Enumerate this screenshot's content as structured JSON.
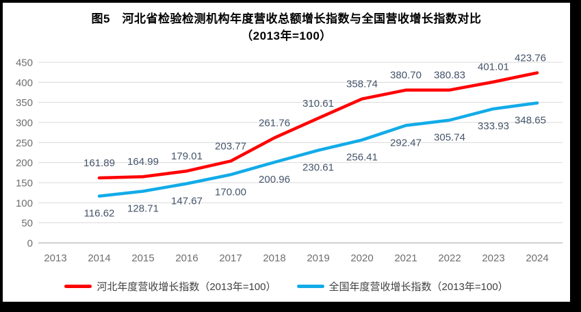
{
  "window": {
    "background": "#ffffff",
    "border_color": "#000000"
  },
  "title": {
    "line1": "图5　河北省检验检测机构年度营收总额增长指数与全国营收增长指数对比",
    "line2": "（2013年=100）"
  },
  "chart_data": {
    "type": "line",
    "title": "图5　河北省检验检测机构年度营收总额增长指数与全国营收增长指数对比（2013年=100）",
    "categories": [
      "2013",
      "2014",
      "2015",
      "2016",
      "2017",
      "2018",
      "2019",
      "2020",
      "2021",
      "2022",
      "2023",
      "2024"
    ],
    "series": [
      {
        "name": "河北年度营收增长指数（2013年=100）",
        "color": "#FF0000",
        "values": [
          null,
          161.89,
          164.99,
          179.01,
          203.77,
          261.76,
          310.61,
          358.74,
          380.7,
          380.83,
          401.01,
          423.76
        ],
        "labels": [
          null,
          "161.89",
          "164.99",
          "179.01",
          "203.77",
          "261.76",
          "310.61",
          "358.74",
          "380.70",
          "380.83",
          "401.01",
          "423.76"
        ],
        "label_position": "above"
      },
      {
        "name": "全国年度营收增长指数（2013年=100）",
        "color": "#12ABE8",
        "values": [
          null,
          116.62,
          128.71,
          147.67,
          170.0,
          200.96,
          230.61,
          256.41,
          292.47,
          305.74,
          333.93,
          348.65
        ],
        "labels": [
          null,
          "116.62",
          "128.71",
          "147.67",
          "170.00",
          "200.96",
          "230.61",
          "256.41",
          "292.47",
          "305.74",
          "333.93",
          "348.65"
        ],
        "label_position": "below"
      }
    ],
    "ylim": [
      0,
      450
    ],
    "yticks": [
      0,
      50,
      100,
      150,
      200,
      250,
      300,
      350,
      400,
      450
    ],
    "grid": true,
    "legend_position": "bottom",
    "styles": {
      "grid_color": "#d9d9d9",
      "axis_line_color": "#c0c0c0",
      "tick_label_color": "#6e6e6e",
      "data_label_color": "#44546a",
      "legend_text_color": "#404040"
    }
  }
}
